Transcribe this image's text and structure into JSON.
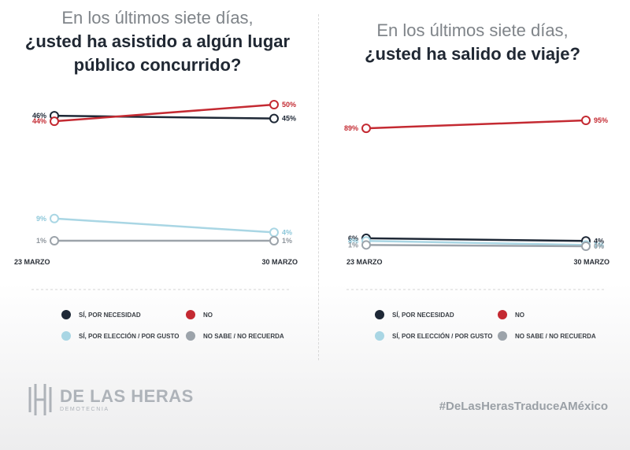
{
  "colors": {
    "dark": "#1e2836",
    "red": "#c42a32",
    "light": "#a9d6e4",
    "gray": "#9ca3aa"
  },
  "legend": {
    "necesidad": "SÍ, POR NECESIDAD",
    "no": "NO",
    "eleccion": "SÍ, POR ELECCIÓN / POR GUSTO",
    "nosabe": "NO SABE / NO RECUERDA"
  },
  "chart_data": [
    {
      "type": "line",
      "title_line1": "En los últimos siete días,",
      "title_line2": "¿usted ha asistido a algún lugar",
      "title_line3": "público concurrido?",
      "categories": [
        "23 MARZO",
        "30 MARZO"
      ],
      "series": [
        {
          "name": "SÍ, POR NECESIDAD",
          "color": "#1e2836",
          "values": [
            46,
            45
          ],
          "labels": [
            "46%",
            "45%"
          ]
        },
        {
          "name": "NO",
          "color": "#c42a32",
          "values": [
            44,
            50
          ],
          "labels": [
            "44%",
            "50%"
          ]
        },
        {
          "name": "SÍ, POR ELECCIÓN / POR GUSTO",
          "color": "#a9d6e4",
          "values": [
            9,
            4
          ],
          "labels": [
            "9%",
            "4%"
          ]
        },
        {
          "name": "NO SABE / NO RECUERDA",
          "color": "#9ca3aa",
          "values": [
            1,
            1
          ],
          "labels": [
            "1%",
            "1%"
          ]
        }
      ]
    },
    {
      "type": "line",
      "title_line1": "En los últimos siete días,",
      "title_line2": "¿usted ha salido de viaje?",
      "categories": [
        "23 MARZO",
        "30 MARZO"
      ],
      "series": [
        {
          "name": "SÍ, POR NECESIDAD",
          "color": "#1e2836",
          "values": [
            6,
            4
          ],
          "labels": [
            "6%",
            "4%"
          ]
        },
        {
          "name": "NO",
          "color": "#c42a32",
          "values": [
            89,
            95
          ],
          "labels": [
            "89%",
            "95%"
          ]
        },
        {
          "name": "SÍ, POR ELECCIÓN / POR GUSTO",
          "color": "#a9d6e4",
          "values": [
            4,
            1
          ],
          "labels": [
            "4%",
            "1%"
          ]
        },
        {
          "name": "NO SABE / NO RECUERDA",
          "color": "#9ca3aa",
          "values": [
            1,
            0
          ],
          "labels": [
            "1%",
            "0%"
          ]
        }
      ]
    }
  ],
  "footer": {
    "brand": "DE LAS HERAS",
    "sub": "DEMOTECNIA",
    "hashtag": "#DeLasHerasTraduceAMéxico"
  }
}
